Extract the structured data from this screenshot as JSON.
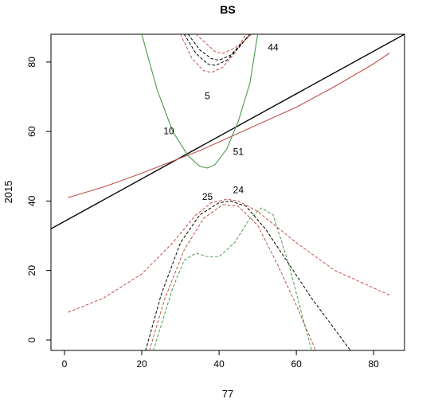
{
  "chart_data": {
    "type": "line",
    "title": "BS",
    "xlabel": "77",
    "ylabel": "2015",
    "xlim": [
      -3.5,
      88
    ],
    "ylim": [
      -3,
      88
    ],
    "xticks": [
      0,
      20,
      40,
      60,
      80
    ],
    "yticks": [
      0,
      20,
      40,
      60,
      80
    ],
    "grid": false,
    "series": [
      {
        "color": "#000000",
        "style": "solid",
        "x": [
          -3.5,
          88
        ],
        "y": [
          32,
          88
        ]
      },
      {
        "color": "#c0504d",
        "style": "solid",
        "x": [
          1,
          10,
          20,
          28,
          35,
          42,
          50,
          60,
          70,
          80,
          84
        ],
        "y": [
          41,
          44,
          48,
          51.5,
          54.5,
          58,
          62,
          67,
          73,
          79.5,
          82.5
        ]
      },
      {
        "color": "#4a9a4a",
        "style": "solid",
        "x": [
          20,
          24,
          28,
          32,
          35,
          37,
          39,
          42,
          45,
          48,
          50
        ],
        "y": [
          88,
          72,
          60,
          53,
          50,
          49.5,
          50.5,
          55,
          63,
          74,
          88
        ]
      },
      {
        "color": "#c0504d",
        "style": "dashed",
        "x": [
          1,
          10,
          20,
          28,
          34,
          38,
          42,
          45,
          50,
          60,
          70,
          80,
          84
        ],
        "y": [
          8,
          12,
          19,
          28,
          36,
          39.5,
          40.5,
          40,
          37,
          28,
          20,
          15,
          13
        ]
      },
      {
        "color": "#4a9a4a",
        "style": "dashed",
        "x": [
          23,
          28,
          31,
          34,
          37,
          40,
          44,
          48,
          51,
          54,
          58,
          62,
          64
        ],
        "y": [
          -3,
          15,
          23,
          25,
          24,
          24,
          28,
          35,
          38,
          36,
          22,
          5,
          -3
        ]
      },
      {
        "color": "#000000",
        "style": "dashed",
        "x": [
          21,
          25,
          30,
          35,
          40,
          43,
          47,
          52,
          58,
          64,
          70,
          74
        ],
        "y": [
          -3,
          13,
          28,
          36,
          39.5,
          40,
          38.5,
          32,
          22,
          12,
          3,
          -3
        ]
      },
      {
        "color": "#c0504d",
        "style": "dashed",
        "x": [
          22,
          26,
          31,
          36,
          41,
          45,
          50,
          55,
          60,
          65
        ],
        "y": [
          -3,
          12,
          26,
          35,
          39,
          38.5,
          33,
          22,
          10,
          -3
        ]
      },
      {
        "color": "#c0504d",
        "style": "dashed",
        "x": [
          30,
          33,
          36,
          38,
          41,
          44,
          47
        ],
        "y": [
          88,
          81,
          77.5,
          77,
          78.5,
          82.5,
          88
        ]
      },
      {
        "color": "#000000",
        "style": "dashed",
        "x": [
          31,
          34,
          37,
          39,
          42,
          45,
          48
        ],
        "y": [
          88,
          82.5,
          79.5,
          79,
          80.5,
          84,
          88
        ]
      },
      {
        "color": "#000000",
        "style": "dashed",
        "x": [
          32,
          35,
          38,
          40,
          43,
          46,
          48
        ],
        "y": [
          88,
          83.5,
          81,
          80.5,
          82,
          85.5,
          88
        ]
      },
      {
        "color": "#c0504d",
        "style": "dashed",
        "x": [
          34,
          37,
          39,
          41,
          44,
          47,
          48.5
        ],
        "y": [
          88,
          85,
          83,
          82.5,
          84,
          86.5,
          88
        ]
      }
    ],
    "annotations": [
      {
        "text": "44",
        "x": 54,
        "y": 84
      },
      {
        "text": "5",
        "x": 37,
        "y": 70
      },
      {
        "text": "10",
        "x": 27,
        "y": 60
      },
      {
        "text": "51",
        "x": 45,
        "y": 54
      },
      {
        "text": "25",
        "x": 37,
        "y": 41
      },
      {
        "text": "24",
        "x": 45,
        "y": 43
      }
    ]
  }
}
